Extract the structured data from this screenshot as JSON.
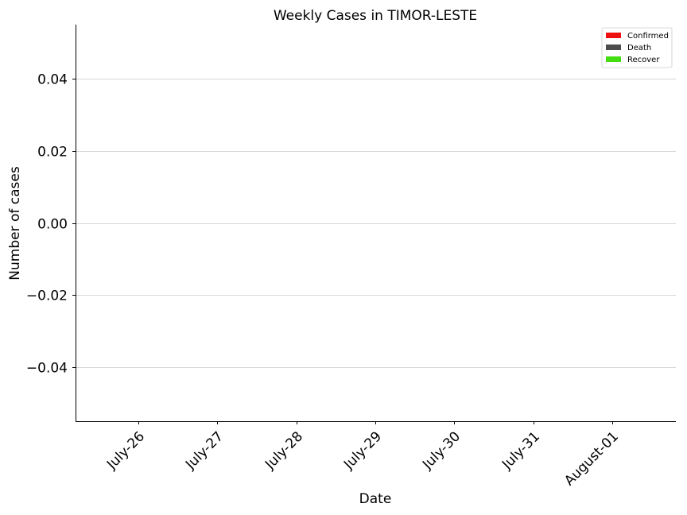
{
  "chart_data": {
    "type": "bar",
    "title": "Weekly Cases in TIMOR-LESTE",
    "xlabel": "Date",
    "ylabel": "Number of cases",
    "categories": [
      "July-26",
      "July-27",
      "July-28",
      "July-29",
      "July-30",
      "July-31",
      "August-01"
    ],
    "ylim": [
      -0.055,
      0.055
    ],
    "yticks": [
      -0.04,
      -0.02,
      0.0,
      0.02,
      0.04
    ],
    "ytick_labels": [
      "−0.04",
      "−0.02",
      "0.00",
      "0.02",
      "0.04"
    ],
    "grid": "horizontal",
    "legend_position": "top-right",
    "series": [
      {
        "name": "Confirmed",
        "color": "#ee1111",
        "values": [
          0,
          0,
          0,
          0,
          0,
          0,
          0
        ]
      },
      {
        "name": "Death",
        "color": "#4d4d4d",
        "values": [
          0,
          0,
          0,
          0,
          0,
          0,
          0
        ]
      },
      {
        "name": "Recover",
        "color": "#44dd11",
        "values": [
          0,
          0,
          0,
          0,
          0,
          0,
          0
        ]
      }
    ]
  }
}
